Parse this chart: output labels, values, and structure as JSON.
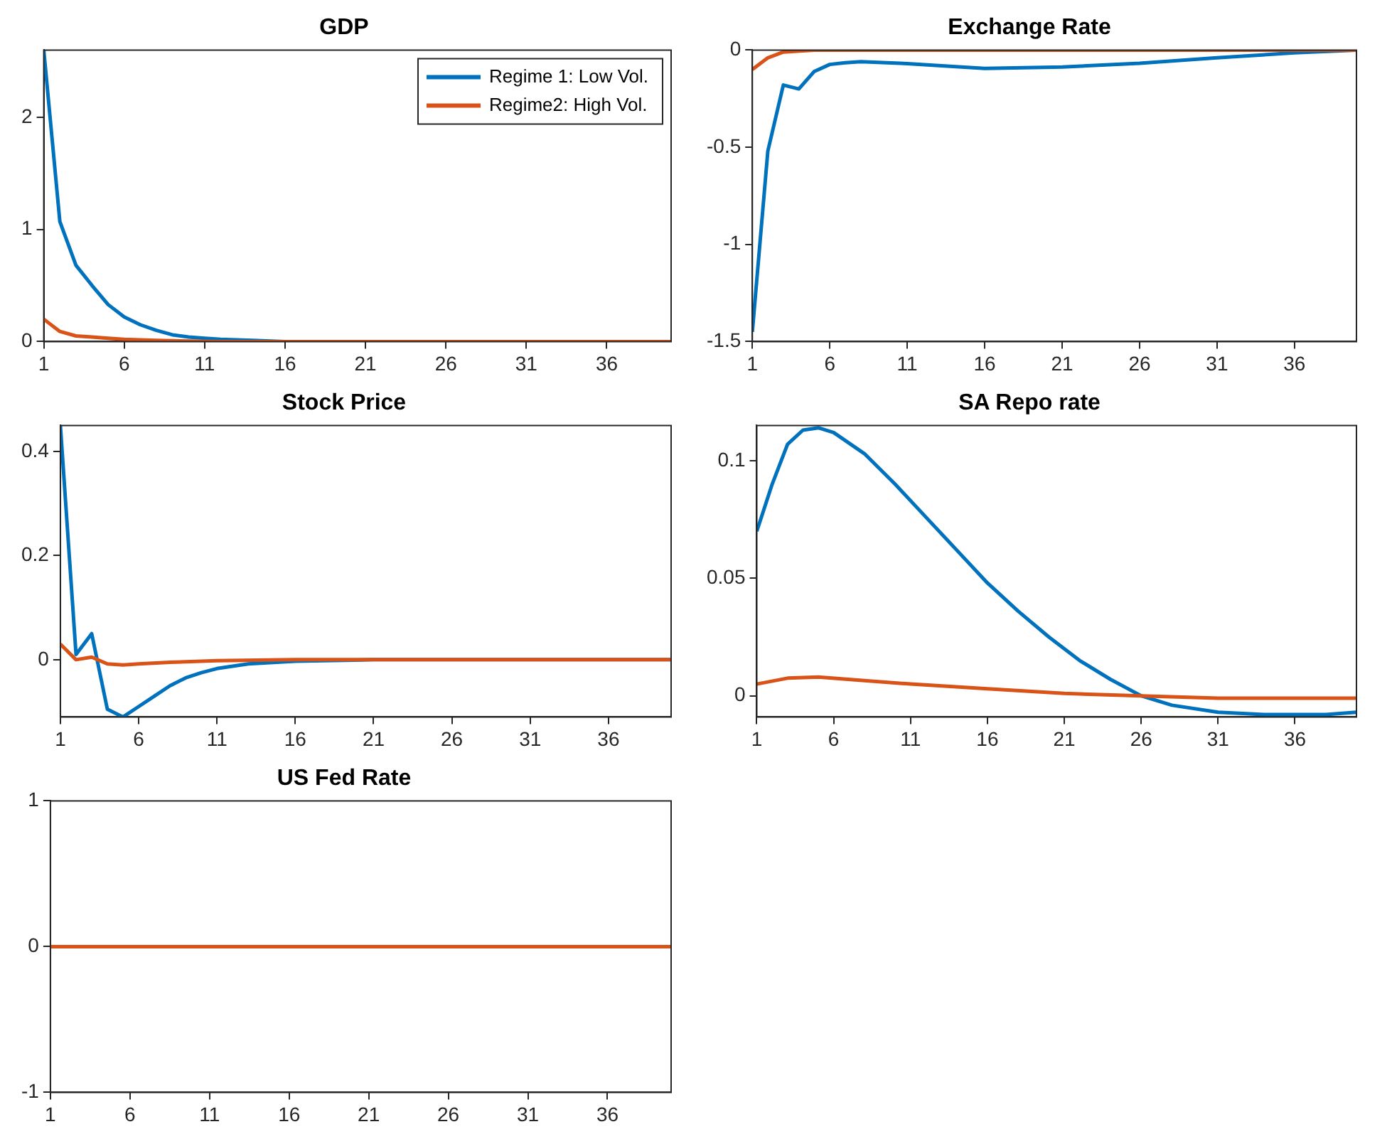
{
  "chart_data": [
    {
      "type": "line",
      "title": "GDP",
      "legend": "top right",
      "xlim": [
        1,
        40
      ],
      "xticks": [
        1,
        6,
        11,
        16,
        21,
        26,
        31,
        36
      ],
      "ylim": [
        0,
        2.6
      ],
      "yticks": [
        0,
        1,
        2
      ],
      "grid": false,
      "series": [
        {
          "name": "Regime 1: Low Vol.",
          "color": "#0072bd",
          "x": [
            1,
            2,
            3,
            4,
            5,
            6,
            7,
            8,
            9,
            10,
            11,
            12,
            14,
            16,
            40
          ],
          "values": [
            2.6,
            1.07,
            0.68,
            0.5,
            0.33,
            0.22,
            0.15,
            0.1,
            0.06,
            0.04,
            0.03,
            0.02,
            0.01,
            0,
            0
          ]
        },
        {
          "name": "Regime2: High Vol.",
          "color": "#d95319",
          "x": [
            1,
            2,
            3,
            4,
            5,
            6,
            8,
            12,
            40
          ],
          "values": [
            0.2,
            0.09,
            0.05,
            0.04,
            0.03,
            0.02,
            0.01,
            0,
            0
          ]
        }
      ]
    },
    {
      "type": "line",
      "title": "Exchange Rate",
      "xlim": [
        1,
        40
      ],
      "xticks": [
        1,
        6,
        11,
        16,
        21,
        26,
        31,
        36
      ],
      "ylim": [
        -1.5,
        0
      ],
      "yticks": [
        -1.5,
        -1,
        -0.5,
        0
      ],
      "grid": false,
      "series": [
        {
          "color": "#0072bd",
          "x": [
            1,
            2,
            3,
            4,
            5,
            6,
            7,
            8,
            11,
            16,
            21,
            26,
            31,
            36,
            40
          ],
          "values": [
            -1.45,
            -0.52,
            -0.18,
            -0.2,
            -0.11,
            -0.074,
            -0.065,
            -0.06,
            -0.07,
            -0.095,
            -0.087,
            -0.068,
            -0.04,
            -0.014,
            0
          ]
        },
        {
          "color": "#d95319",
          "x": [
            1,
            2,
            3,
            5,
            40
          ],
          "values": [
            -0.1,
            -0.04,
            -0.01,
            0,
            0
          ]
        }
      ]
    },
    {
      "type": "line",
      "title": "Stock Price",
      "xlim": [
        1,
        40
      ],
      "xticks": [
        1,
        6,
        11,
        16,
        21,
        26,
        31,
        36
      ],
      "ylim": [
        -0.11,
        0.45
      ],
      "yticks": [
        0,
        0.2,
        0.4
      ],
      "grid": false,
      "series": [
        {
          "color": "#0072bd",
          "x": [
            1,
            2,
            3,
            4,
            5,
            6,
            7,
            8,
            9,
            10,
            11,
            13,
            16,
            21,
            40
          ],
          "values": [
            0.45,
            0.01,
            0.05,
            -0.095,
            -0.11,
            -0.09,
            -0.07,
            -0.05,
            -0.035,
            -0.025,
            -0.017,
            -0.008,
            -0.003,
            0,
            0
          ]
        },
        {
          "color": "#d95319",
          "x": [
            1,
            2,
            3,
            4,
            5,
            6,
            8,
            11,
            16,
            40
          ],
          "values": [
            0.03,
            0,
            0.005,
            -0.008,
            -0.01,
            -0.008,
            -0.005,
            -0.002,
            0,
            0
          ]
        }
      ]
    },
    {
      "type": "line",
      "title": "SA Repo rate",
      "xlim": [
        1,
        40
      ],
      "xticks": [
        1,
        6,
        11,
        16,
        21,
        26,
        31,
        36
      ],
      "ylim": [
        -0.009,
        0.115
      ],
      "yticks": [
        0,
        0.05,
        0.1
      ],
      "grid": false,
      "series": [
        {
          "color": "#0072bd",
          "x": [
            1,
            2,
            3,
            4,
            5,
            6,
            8,
            10,
            12,
            14,
            16,
            18,
            20,
            22,
            24,
            26,
            28,
            31,
            34,
            36,
            38,
            40
          ],
          "values": [
            0.07,
            0.09,
            0.107,
            0.113,
            0.114,
            0.112,
            0.103,
            0.09,
            0.076,
            0.062,
            0.048,
            0.036,
            0.025,
            0.015,
            0.007,
            0,
            -0.004,
            -0.007,
            -0.008,
            -0.008,
            -0.008,
            -0.007
          ]
        },
        {
          "color": "#d95319",
          "x": [
            1,
            3,
            5,
            8,
            11,
            16,
            21,
            26,
            31,
            40
          ],
          "values": [
            0.005,
            0.0075,
            0.008,
            0.0065,
            0.005,
            0.003,
            0.001,
            0,
            -0.001,
            -0.001
          ]
        }
      ]
    },
    {
      "type": "line",
      "title": "US Fed Rate",
      "xlim": [
        1,
        40
      ],
      "xticks": [
        1,
        6,
        11,
        16,
        21,
        26,
        31,
        36
      ],
      "ylim": [
        -1,
        1
      ],
      "yticks": [
        -1,
        0,
        1
      ],
      "grid": false,
      "series": [
        {
          "color": "#d95319",
          "x": [
            1,
            40
          ],
          "values": [
            0,
            0
          ]
        }
      ]
    }
  ]
}
